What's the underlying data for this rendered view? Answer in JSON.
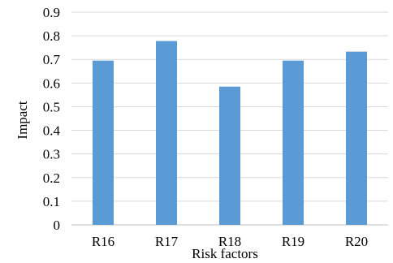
{
  "chart_data": {
    "type": "bar",
    "title": "",
    "xlabel": "Risk factors",
    "ylabel": "Impact",
    "categories": [
      "R16",
      "R17",
      "R18",
      "R19",
      "R20"
    ],
    "values": [
      0.695,
      0.778,
      0.585,
      0.695,
      0.733
    ],
    "ylim": [
      0,
      0.9
    ],
    "yticks": [
      "0",
      "0.1",
      "0.2",
      "0.3",
      "0.4",
      "0.5",
      "0.6",
      "0.7",
      "0.8",
      "0.9"
    ],
    "bar_color": "#5b9bd5",
    "grid": true,
    "legend": "none"
  }
}
